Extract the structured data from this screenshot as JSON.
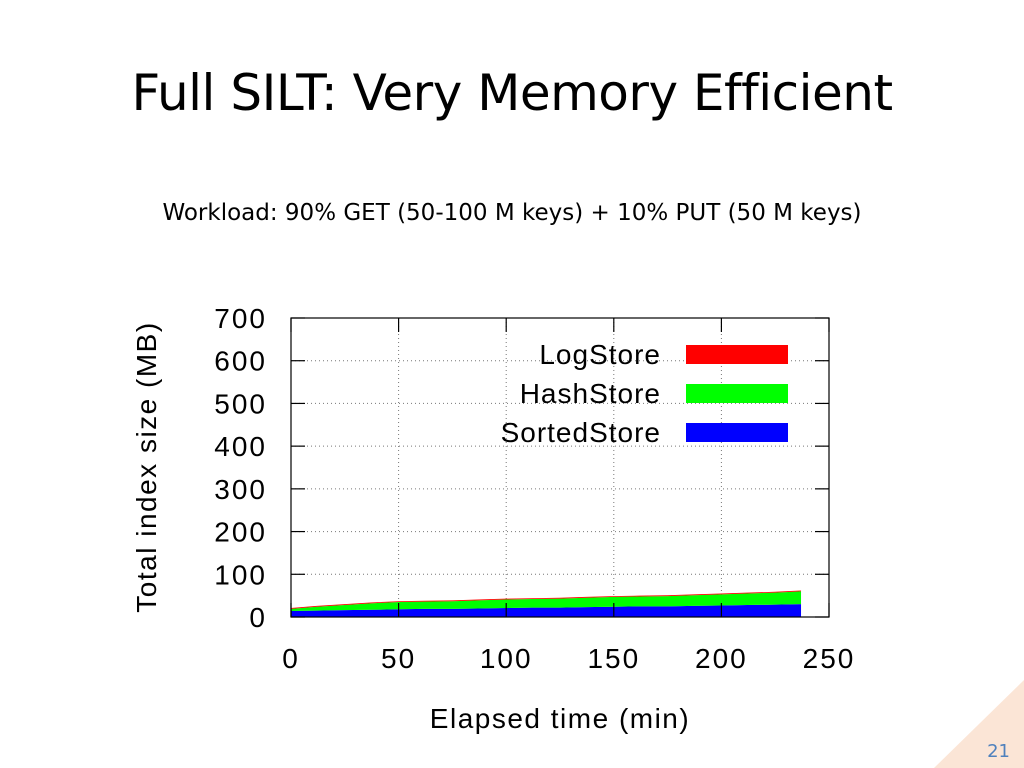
{
  "slide": {
    "title": "Full SILT: Very Memory Efficient",
    "subtitle": "Workload: 90% GET (50-100 M keys) + 10% PUT (50 M keys)",
    "number": "21"
  },
  "chart_data": {
    "type": "area",
    "stacked": true,
    "xlabel": "Elapsed time (min)",
    "ylabel": "Total index size (MB)",
    "xlim": [
      0,
      250
    ],
    "ylim": [
      0,
      700
    ],
    "x_ticks": [
      0,
      50,
      100,
      150,
      200,
      250
    ],
    "y_ticks": [
      0,
      100,
      200,
      300,
      400,
      500,
      600,
      700
    ],
    "grid": true,
    "legend_position": "top-right",
    "x": [
      0,
      12,
      25,
      37,
      50,
      62,
      75,
      87,
      100,
      112,
      125,
      137,
      150,
      162,
      175,
      187,
      200,
      212,
      225,
      237
    ],
    "series": [
      {
        "name": "SortedStore",
        "color": "#0000ff",
        "values": [
          14,
          15,
          16,
          17,
          18,
          19,
          19,
          20,
          21,
          22,
          22,
          23,
          24,
          25,
          25,
          26,
          27,
          28,
          29,
          30
        ]
      },
      {
        "name": "HashStore",
        "color": "#00ff00",
        "values": [
          5,
          9,
          12,
          15,
          17,
          17,
          18,
          19,
          20,
          20,
          21,
          22,
          23,
          23,
          24,
          25,
          26,
          27,
          28,
          30
        ]
      },
      {
        "name": "LogStore",
        "color": "#ff0000",
        "values": [
          2,
          2,
          2,
          2,
          2,
          2,
          2,
          2,
          2,
          2,
          2,
          2,
          2,
          2,
          2,
          2,
          2,
          2,
          2,
          2
        ]
      }
    ],
    "legend_order": [
      "LogStore",
      "HashStore",
      "SortedStore"
    ]
  }
}
